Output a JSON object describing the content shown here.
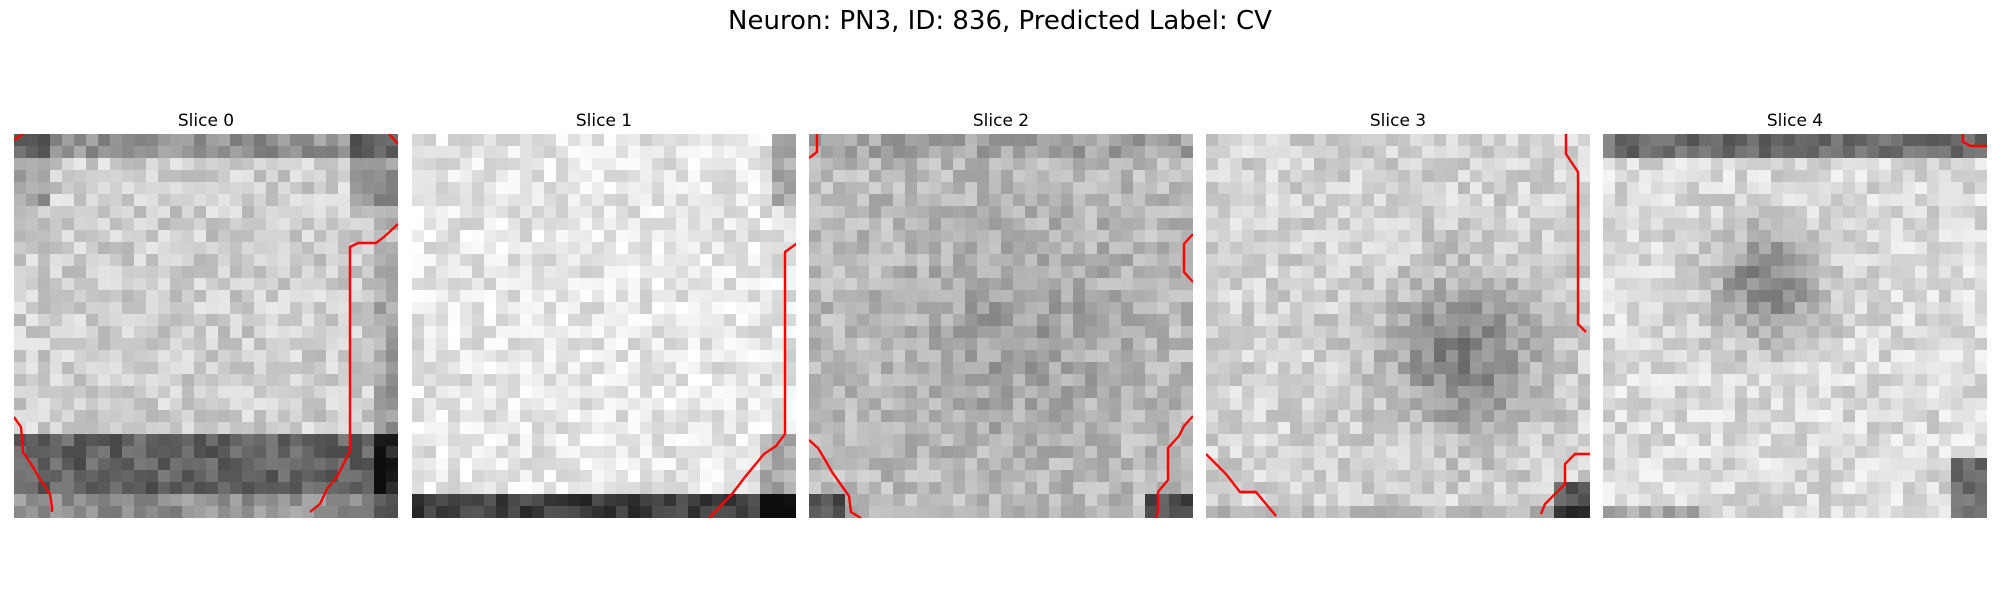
{
  "figure": {
    "title": "Neuron: PN3, ID: 836, Predicted Label: CV",
    "overlay_color": "#ff0000"
  },
  "slices": [
    {
      "label": "Slice 0"
    },
    {
      "label": "Slice 1"
    },
    {
      "label": "Slice 2"
    },
    {
      "label": "Slice 3"
    },
    {
      "label": "Slice 4"
    }
  ]
}
